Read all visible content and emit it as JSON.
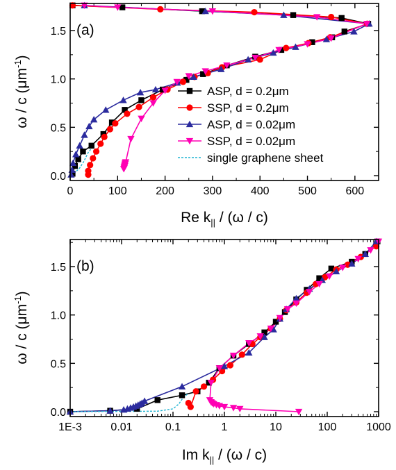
{
  "chart_data": [
    {
      "type": "line",
      "panel_label": "(a)",
      "xlabel": "Re k|| / (ω / c)",
      "ylabel": "ω / c (μm-1)",
      "xlim": [
        0,
        650
      ],
      "ylim": [
        -0.05,
        1.78
      ],
      "x_scale": "linear",
      "x_ticks": [
        "0",
        "100",
        "200",
        "300",
        "400",
        "500",
        "600"
      ],
      "y_ticks": [
        "0.0",
        "0.5",
        "1.0",
        "1.5"
      ],
      "legend_position": "bottom-right",
      "series": [
        {
          "name": "ASP, d = 0.2μm",
          "color": "#000000",
          "marker": "square",
          "line": "solid",
          "points": [
            [
              5,
              0.02
            ],
            [
              10,
              0.1
            ],
            [
              17,
              0.17
            ],
            [
              27,
              0.25
            ],
            [
              45,
              0.31
            ],
            [
              70,
              0.43
            ],
            [
              88,
              0.55
            ],
            [
              115,
              0.68
            ],
            [
              150,
              0.78
            ],
            [
              195,
              0.89
            ],
            [
              245,
              0.99
            ],
            [
              280,
              1.05
            ],
            [
              330,
              1.14
            ],
            [
              390,
              1.23
            ],
            [
              445,
              1.3
            ],
            [
              510,
              1.38
            ],
            [
              552,
              1.43
            ],
            [
              578,
              1.49
            ],
            [
              628,
              1.57
            ],
            [
              572,
              1.63
            ],
            [
              470,
              1.66
            ],
            [
              278,
              1.7
            ],
            [
              110,
              1.74
            ],
            [
              5,
              1.76
            ]
          ]
        },
        {
          "name": "SSP, d = 0.2μm",
          "color": "#ff0000",
          "marker": "circle",
          "line": "solid",
          "points": [
            [
              38,
              0.01
            ],
            [
              38,
              0.05
            ],
            [
              42,
              0.11
            ],
            [
              48,
              0.18
            ],
            [
              55,
              0.25
            ],
            [
              64,
              0.33
            ],
            [
              72,
              0.4
            ],
            [
              84,
              0.48
            ],
            [
              95,
              0.54
            ],
            [
              120,
              0.64
            ],
            [
              145,
              0.71
            ],
            [
              175,
              0.81
            ],
            [
              205,
              0.89
            ],
            [
              238,
              0.97
            ],
            [
              262,
              1.02
            ],
            [
              290,
              1.06
            ],
            [
              320,
              1.12
            ],
            [
              400,
              1.2
            ],
            [
              455,
              1.32
            ],
            [
              502,
              1.37
            ],
            [
              548,
              1.43
            ],
            [
              626,
              1.57
            ],
            [
              550,
              1.64
            ],
            [
              388,
              1.69
            ],
            [
              190,
              1.72
            ],
            [
              5,
              1.76
            ]
          ]
        },
        {
          "name": "ASP, d = 0.02μm",
          "color": "#2b2b9e",
          "marker": "triangle-up",
          "line": "solid",
          "points": [
            [
              2,
              0.01
            ],
            [
              4,
              0.06
            ],
            [
              6,
              0.13
            ],
            [
              12,
              0.22
            ],
            [
              20,
              0.31
            ],
            [
              30,
              0.42
            ],
            [
              40,
              0.51
            ],
            [
              50,
              0.58
            ],
            [
              75,
              0.68
            ],
            [
              112,
              0.78
            ],
            [
              148,
              0.86
            ],
            [
              180,
              0.89
            ],
            [
              226,
              0.96
            ],
            [
              260,
              1.02
            ],
            [
              318,
              1.1
            ],
            [
              375,
              1.2
            ],
            [
              428,
              1.27
            ],
            [
              475,
              1.33
            ],
            [
              540,
              1.41
            ],
            [
              598,
              1.49
            ],
            [
              630,
              1.57
            ],
            [
              450,
              1.66
            ],
            [
              285,
              1.7
            ],
            [
              30,
              1.76
            ]
          ]
        },
        {
          "name": "SSP, d = 0.02μm",
          "color": "#ff00b4",
          "marker": "triangle-down",
          "line": "solid",
          "points": [
            [
              113,
              0.07
            ],
            [
              114,
              0.08
            ],
            [
              114,
              0.09
            ],
            [
              115,
              0.1
            ],
            [
              115,
              0.11
            ],
            [
              116,
              0.12
            ],
            [
              116,
              0.13
            ],
            [
              117,
              0.14
            ],
            [
              128,
              0.38
            ],
            [
              150,
              0.59
            ],
            [
              175,
              0.75
            ],
            [
              200,
              0.88
            ],
            [
              225,
              0.97
            ],
            [
              250,
              1.03
            ],
            [
              285,
              1.08
            ],
            [
              330,
              1.14
            ],
            [
              390,
              1.22
            ],
            [
              440,
              1.3
            ],
            [
              500,
              1.36
            ],
            [
              550,
              1.42
            ],
            [
              625,
              1.57
            ],
            [
              520,
              1.64
            ],
            [
              300,
              1.7
            ],
            [
              100,
              1.74
            ],
            [
              30,
              1.76
            ]
          ]
        },
        {
          "name": "single graphene sheet",
          "color": "#1fb4d2",
          "marker": "none",
          "line": "dashed",
          "points": [
            [
              2,
              0.0
            ],
            [
              6,
              0.02
            ],
            [
              12,
              0.04
            ],
            [
              20,
              0.08
            ],
            [
              28,
              0.14
            ],
            [
              38,
              0.24
            ],
            [
              48,
              0.3
            ]
          ]
        }
      ]
    },
    {
      "type": "line",
      "panel_label": "(b)",
      "xlabel": "Im k|| / (ω / c)",
      "ylabel": "ω / c (μm-1)",
      "xlim": [
        0.001,
        1000
      ],
      "ylim": [
        -0.05,
        1.78
      ],
      "x_scale": "log",
      "x_ticks": [
        "1E-3",
        "0.01",
        "0.1",
        "1",
        "10",
        "100",
        "1000"
      ],
      "y_ticks": [
        "0.0",
        "0.5",
        "1.0",
        "1.5"
      ],
      "series": [
        {
          "name": "ASP, d = 0.2μm",
          "color": "#000000",
          "marker": "square",
          "line": "solid",
          "points": [
            [
              0.001,
              0.0
            ],
            [
              0.006,
              0.01
            ],
            [
              0.02,
              0.03
            ],
            [
              0.05,
              0.12
            ],
            [
              0.15,
              0.17
            ],
            [
              0.3,
              0.21
            ],
            [
              0.5,
              0.3
            ],
            [
              0.8,
              0.45
            ],
            [
              1.5,
              0.58
            ],
            [
              3,
              0.7
            ],
            [
              6,
              0.82
            ],
            [
              10,
              0.93
            ],
            [
              15,
              1.03
            ],
            [
              25,
              1.16
            ],
            [
              40,
              1.26
            ],
            [
              70,
              1.38
            ],
            [
              120,
              1.48
            ],
            [
              300,
              1.55
            ],
            [
              550,
              1.63
            ],
            [
              900,
              1.73
            ],
            [
              950,
              1.76
            ]
          ]
        },
        {
          "name": "SSP, d = 0.2μm",
          "color": "#ff0000",
          "marker": "circle",
          "line": "solid",
          "points": [
            [
              0.2,
              0.09
            ],
            [
              0.22,
              0.05
            ],
            [
              0.28,
              0.21
            ],
            [
              0.4,
              0.26
            ],
            [
              0.6,
              0.33
            ],
            [
              0.9,
              0.42
            ],
            [
              1.3,
              0.48
            ],
            [
              2.2,
              0.59
            ],
            [
              3.5,
              0.7
            ],
            [
              5,
              0.77
            ],
            [
              8,
              0.86
            ],
            [
              12,
              0.96
            ],
            [
              16,
              1.05
            ],
            [
              25,
              1.13
            ],
            [
              40,
              1.23
            ],
            [
              60,
              1.32
            ],
            [
              90,
              1.39
            ],
            [
              150,
              1.47
            ],
            [
              250,
              1.52
            ],
            [
              450,
              1.6
            ],
            [
              900,
              1.71
            ]
          ]
        },
        {
          "name": "ASP, d = 0.02μm",
          "color": "#2b2b9e",
          "marker": "triangle-up",
          "line": "solid",
          "points": [
            [
              0.001,
              0.0
            ],
            [
              0.006,
              0.01
            ],
            [
              0.011,
              0.02
            ],
            [
              0.013,
              0.03
            ],
            [
              0.015,
              0.04
            ],
            [
              0.017,
              0.05
            ],
            [
              0.019,
              0.06
            ],
            [
              0.021,
              0.07
            ],
            [
              0.023,
              0.08
            ],
            [
              0.025,
              0.09
            ],
            [
              0.028,
              0.11
            ],
            [
              0.15,
              0.26
            ],
            [
              1.0,
              0.47
            ],
            [
              3,
              0.61
            ],
            [
              6,
              0.77
            ],
            [
              9,
              0.85
            ],
            [
              12,
              0.96
            ],
            [
              16,
              1.06
            ],
            [
              25,
              1.17
            ],
            [
              45,
              1.27
            ],
            [
              80,
              1.36
            ],
            [
              150,
              1.45
            ],
            [
              300,
              1.53
            ],
            [
              550,
              1.63
            ],
            [
              900,
              1.76
            ]
          ]
        },
        {
          "name": "SSP, d = 0.02μm",
          "color": "#ff00b4",
          "marker": "triangle-down",
          "line": "solid",
          "points": [
            [
              28,
              0.0
            ],
            [
              2.0,
              0.03
            ],
            [
              1.5,
              0.04
            ],
            [
              1.0,
              0.05
            ],
            [
              0.8,
              0.06
            ],
            [
              0.7,
              0.07
            ],
            [
              0.62,
              0.08
            ],
            [
              0.58,
              0.09
            ],
            [
              0.55,
              0.1
            ],
            [
              0.52,
              0.12
            ],
            [
              0.55,
              0.3
            ],
            [
              0.8,
              0.45
            ],
            [
              1.5,
              0.58
            ],
            [
              3,
              0.71
            ],
            [
              5,
              0.78
            ],
            [
              8,
              0.86
            ],
            [
              12,
              0.97
            ],
            [
              17,
              1.06
            ],
            [
              25,
              1.12
            ],
            [
              45,
              1.24
            ],
            [
              70,
              1.32
            ],
            [
              110,
              1.4
            ],
            [
              200,
              1.49
            ],
            [
              400,
              1.58
            ],
            [
              700,
              1.67
            ],
            [
              1000,
              1.76
            ]
          ]
        },
        {
          "name": "single graphene sheet",
          "color": "#1fb4d2",
          "marker": "none",
          "line": "dashed",
          "points": [
            [
              0.001,
              0.0
            ],
            [
              0.05,
              0.005
            ],
            [
              0.1,
              0.03
            ],
            [
              0.13,
              0.08
            ],
            [
              0.16,
              0.15
            ],
            [
              0.2,
              0.19
            ]
          ]
        }
      ]
    }
  ]
}
